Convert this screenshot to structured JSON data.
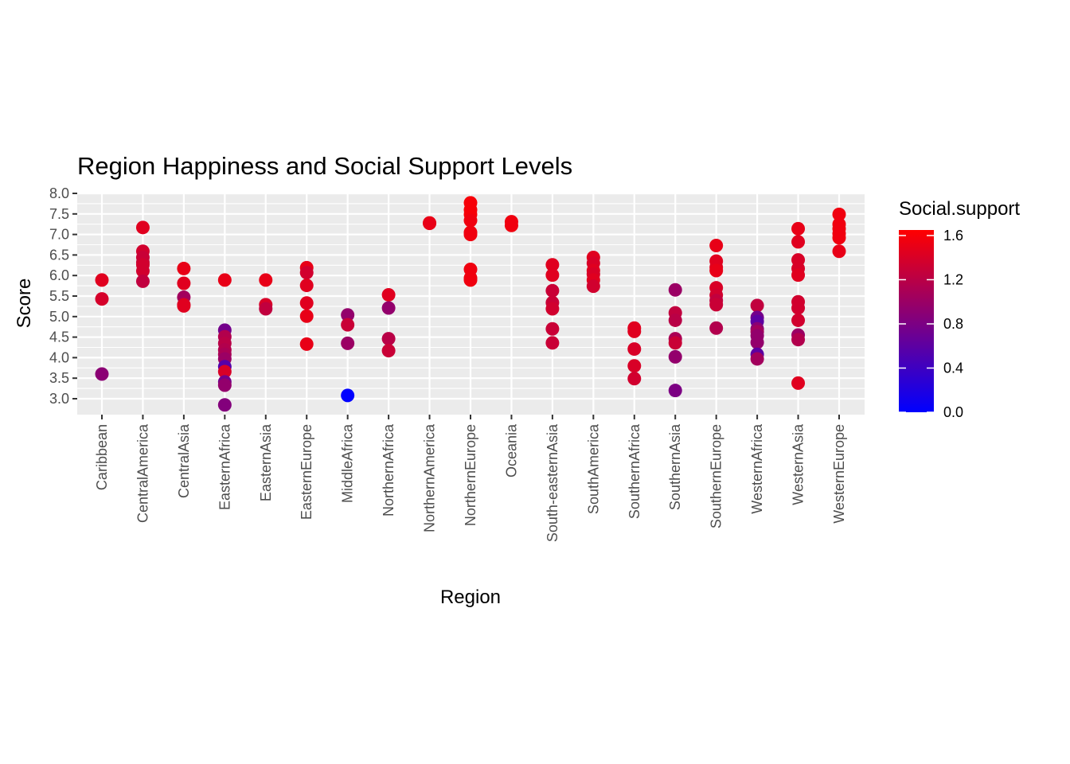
{
  "chart_data": {
    "type": "scatter",
    "title": "Region Happiness and Social Support Levels",
    "xlabel": "Region",
    "ylabel": "Score",
    "categories": [
      "Caribbean",
      "CentralAmerica",
      "CentralAsia",
      "EasternAfrica",
      "EasternAsia",
      "EasternEurope",
      "MiddleAfrica",
      "NorthernAfrica",
      "NorthernAmerica",
      "NorthernEurope",
      "Oceania",
      "South-easternAsia",
      "SouthAmerica",
      "SouthernAfrica",
      "SouthernAsia",
      "SouthernEurope",
      "WesternAfrica",
      "WesternAsia",
      "WesternEurope"
    ],
    "ylim": [
      2.75,
      8.1
    ],
    "yticks": [
      "3.0",
      "3.5",
      "4.0",
      "4.5",
      "5.0",
      "5.5",
      "6.0",
      "6.5",
      "7.0",
      "7.5",
      "8.0"
    ],
    "grid": true,
    "color_scale": {
      "name": "Social.support",
      "range": [
        0.0,
        1.65
      ],
      "low_color": "#0000ff",
      "high_color": "#ff0000",
      "ticks": [
        "0.0",
        "0.4",
        "0.8",
        "1.2",
        "1.6"
      ]
    },
    "legend_position": "right",
    "panel_color": "#ebebeb",
    "gridline_color": "#ffffff",
    "points": [
      {
        "region": "Caribbean",
        "score": 5.89,
        "social": 1.45
      },
      {
        "region": "Caribbean",
        "score": 5.43,
        "social": 1.38
      },
      {
        "region": "Caribbean",
        "score": 3.6,
        "social": 0.9
      },
      {
        "region": "CentralAmerica",
        "score": 7.17,
        "social": 1.45
      },
      {
        "region": "CentralAmerica",
        "score": 6.59,
        "social": 1.35
      },
      {
        "region": "CentralAmerica",
        "score": 6.44,
        "social": 1.3
      },
      {
        "region": "CentralAmerica",
        "score": 6.32,
        "social": 1.3
      },
      {
        "region": "CentralAmerica",
        "score": 6.26,
        "social": 1.35
      },
      {
        "region": "CentralAmerica",
        "score": 6.11,
        "social": 1.35
      },
      {
        "region": "CentralAmerica",
        "score": 5.86,
        "social": 1.25
      },
      {
        "region": "CentralAsia",
        "score": 6.17,
        "social": 1.5
      },
      {
        "region": "CentralAsia",
        "score": 5.81,
        "social": 1.45
      },
      {
        "region": "CentralAsia",
        "score": 5.47,
        "social": 1.05
      },
      {
        "region": "CentralAsia",
        "score": 5.29,
        "social": 1.4
      },
      {
        "region": "CentralAsia",
        "score": 5.26,
        "social": 1.45
      },
      {
        "region": "EasternAfrica",
        "score": 5.89,
        "social": 1.5
      },
      {
        "region": "EasternAfrica",
        "score": 4.67,
        "social": 0.75
      },
      {
        "region": "EasternAfrica",
        "score": 4.51,
        "social": 1.15
      },
      {
        "region": "EasternAfrica",
        "score": 4.35,
        "social": 1.2
      },
      {
        "region": "EasternAfrica",
        "score": 4.19,
        "social": 1.15
      },
      {
        "region": "EasternAfrica",
        "score": 4.08,
        "social": 1.1
      },
      {
        "region": "EasternAfrica",
        "score": 3.97,
        "social": 1.0
      },
      {
        "region": "EasternAfrica",
        "score": 3.78,
        "social": 0.55
      },
      {
        "region": "EasternAfrica",
        "score": 3.66,
        "social": 1.4
      },
      {
        "region": "EasternAfrica",
        "score": 3.41,
        "social": 0.75
      },
      {
        "region": "EasternAfrica",
        "score": 3.33,
        "social": 0.95
      },
      {
        "region": "EasternAfrica",
        "score": 2.85,
        "social": 0.85
      },
      {
        "region": "EasternAsia",
        "score": 5.89,
        "social": 1.5
      },
      {
        "region": "EasternAsia",
        "score": 5.29,
        "social": 1.4
      },
      {
        "region": "EasternAsia",
        "score": 5.19,
        "social": 1.25
      },
      {
        "region": "EasternEurope",
        "score": 6.19,
        "social": 1.5
      },
      {
        "region": "EasternEurope",
        "score": 6.07,
        "social": 1.35
      },
      {
        "region": "EasternEurope",
        "score": 5.76,
        "social": 1.45
      },
      {
        "region": "EasternEurope",
        "score": 5.33,
        "social": 1.45
      },
      {
        "region": "EasternEurope",
        "score": 5.01,
        "social": 1.5
      },
      {
        "region": "EasternEurope",
        "score": 4.33,
        "social": 1.5
      },
      {
        "region": "MiddleAfrica",
        "score": 5.04,
        "social": 0.95
      },
      {
        "region": "MiddleAfrica",
        "score": 4.8,
        "social": 1.3
      },
      {
        "region": "MiddleAfrica",
        "score": 4.35,
        "social": 1.0
      },
      {
        "region": "MiddleAfrica",
        "score": 3.08,
        "social": 0.0
      },
      {
        "region": "NorthernAfrica",
        "score": 5.53,
        "social": 1.45
      },
      {
        "region": "NorthernAfrica",
        "score": 5.21,
        "social": 0.95
      },
      {
        "region": "NorthernAfrica",
        "score": 4.46,
        "social": 1.2
      },
      {
        "region": "NorthernAfrica",
        "score": 4.17,
        "social": 1.3
      },
      {
        "region": "NorthernAmerica",
        "score": 7.28,
        "social": 1.55
      },
      {
        "region": "NorthernAmerica",
        "score": 7.27,
        "social": 1.5
      },
      {
        "region": "NorthernEurope",
        "score": 7.77,
        "social": 1.6
      },
      {
        "region": "NorthernEurope",
        "score": 7.6,
        "social": 1.6
      },
      {
        "region": "NorthernEurope",
        "score": 7.49,
        "social": 1.6
      },
      {
        "region": "NorthernEurope",
        "score": 7.34,
        "social": 1.55
      },
      {
        "region": "NorthernEurope",
        "score": 7.05,
        "social": 1.55
      },
      {
        "region": "NorthernEurope",
        "score": 7.0,
        "social": 1.55
      },
      {
        "region": "NorthernEurope",
        "score": 6.15,
        "social": 1.55
      },
      {
        "region": "NorthernEurope",
        "score": 5.94,
        "social": 1.55
      },
      {
        "region": "NorthernEurope",
        "score": 5.89,
        "social": 1.55
      },
      {
        "region": "Oceania",
        "score": 7.31,
        "social": 1.55
      },
      {
        "region": "Oceania",
        "score": 7.22,
        "social": 1.55
      },
      {
        "region": "South-easternAsia",
        "score": 6.26,
        "social": 1.45
      },
      {
        "region": "South-easternAsia",
        "score": 6.01,
        "social": 1.45
      },
      {
        "region": "South-easternAsia",
        "score": 5.63,
        "social": 1.3
      },
      {
        "region": "South-easternAsia",
        "score": 5.34,
        "social": 1.3
      },
      {
        "region": "South-easternAsia",
        "score": 5.19,
        "social": 1.35
      },
      {
        "region": "South-easternAsia",
        "score": 4.7,
        "social": 1.3
      },
      {
        "region": "South-easternAsia",
        "score": 4.36,
        "social": 1.3
      },
      {
        "region": "SouthAmerica",
        "score": 6.44,
        "social": 1.45
      },
      {
        "region": "SouthAmerica",
        "score": 6.3,
        "social": 1.4
      },
      {
        "region": "SouthAmerica",
        "score": 6.12,
        "social": 1.45
      },
      {
        "region": "SouthAmerica",
        "score": 6.03,
        "social": 1.4
      },
      {
        "region": "SouthAmerica",
        "score": 5.89,
        "social": 1.45
      },
      {
        "region": "SouthAmerica",
        "score": 5.74,
        "social": 1.35
      },
      {
        "region": "SouthernAfrica",
        "score": 4.72,
        "social": 1.45
      },
      {
        "region": "SouthernAfrica",
        "score": 4.64,
        "social": 1.45
      },
      {
        "region": "SouthernAfrica",
        "score": 4.21,
        "social": 1.4
      },
      {
        "region": "SouthernAfrica",
        "score": 3.8,
        "social": 1.4
      },
      {
        "region": "SouthernAfrica",
        "score": 3.49,
        "social": 1.35
      },
      {
        "region": "SouthernAsia",
        "score": 5.65,
        "social": 1.0
      },
      {
        "region": "SouthernAsia",
        "score": 5.09,
        "social": 1.25
      },
      {
        "region": "SouthernAsia",
        "score": 4.91,
        "social": 1.2
      },
      {
        "region": "SouthernAsia",
        "score": 4.46,
        "social": 1.1
      },
      {
        "region": "SouthernAsia",
        "score": 4.36,
        "social": 1.3
      },
      {
        "region": "SouthernAsia",
        "score": 4.02,
        "social": 0.95
      },
      {
        "region": "SouthernAsia",
        "score": 3.2,
        "social": 0.8
      },
      {
        "region": "SouthernEurope",
        "score": 6.73,
        "social": 1.5
      },
      {
        "region": "SouthernEurope",
        "score": 6.35,
        "social": 1.45
      },
      {
        "region": "SouthernEurope",
        "score": 6.2,
        "social": 1.45
      },
      {
        "region": "SouthernEurope",
        "score": 6.12,
        "social": 1.5
      },
      {
        "region": "SouthernEurope",
        "score": 5.7,
        "social": 1.4
      },
      {
        "region": "SouthernEurope",
        "score": 5.52,
        "social": 1.35
      },
      {
        "region": "SouthernEurope",
        "score": 5.39,
        "social": 1.25
      },
      {
        "region": "SouthernEurope",
        "score": 5.29,
        "social": 1.3
      },
      {
        "region": "SouthernEurope",
        "score": 4.72,
        "social": 1.15
      },
      {
        "region": "WesternAfrica",
        "score": 5.27,
        "social": 1.25
      },
      {
        "region": "WesternAfrica",
        "score": 4.98,
        "social": 0.75
      },
      {
        "region": "WesternAfrica",
        "score": 4.88,
        "social": 0.6
      },
      {
        "region": "WesternAfrica",
        "score": 4.7,
        "social": 0.9
      },
      {
        "region": "WesternAfrica",
        "score": 4.63,
        "social": 1.05
      },
      {
        "region": "WesternAfrica",
        "score": 4.53,
        "social": 0.95
      },
      {
        "region": "WesternAfrica",
        "score": 4.37,
        "social": 0.95
      },
      {
        "region": "WesternAfrica",
        "score": 4.08,
        "social": 0.6
      },
      {
        "region": "WesternAfrica",
        "score": 3.97,
        "social": 1.05
      },
      {
        "region": "WesternAsia",
        "score": 7.14,
        "social": 1.5
      },
      {
        "region": "WesternAsia",
        "score": 6.82,
        "social": 1.45
      },
      {
        "region": "WesternAsia",
        "score": 6.38,
        "social": 1.4
      },
      {
        "region": "WesternAsia",
        "score": 6.17,
        "social": 1.4
      },
      {
        "region": "WesternAsia",
        "score": 6.01,
        "social": 1.45
      },
      {
        "region": "WesternAsia",
        "score": 5.36,
        "social": 1.35
      },
      {
        "region": "WesternAsia",
        "score": 5.21,
        "social": 1.35
      },
      {
        "region": "WesternAsia",
        "score": 4.91,
        "social": 1.35
      },
      {
        "region": "WesternAsia",
        "score": 4.55,
        "social": 1.0
      },
      {
        "region": "WesternAsia",
        "score": 4.44,
        "social": 1.15
      },
      {
        "region": "WesternAsia",
        "score": 3.38,
        "social": 1.45
      },
      {
        "region": "WesternEurope",
        "score": 7.49,
        "social": 1.55
      },
      {
        "region": "WesternEurope",
        "score": 7.25,
        "social": 1.55
      },
      {
        "region": "WesternEurope",
        "score": 7.14,
        "social": 1.55
      },
      {
        "region": "WesternEurope",
        "score": 7.02,
        "social": 1.55
      },
      {
        "region": "WesternEurope",
        "score": 6.92,
        "social": 1.55
      },
      {
        "region": "WesternEurope",
        "score": 6.59,
        "social": 1.5
      }
    ]
  }
}
